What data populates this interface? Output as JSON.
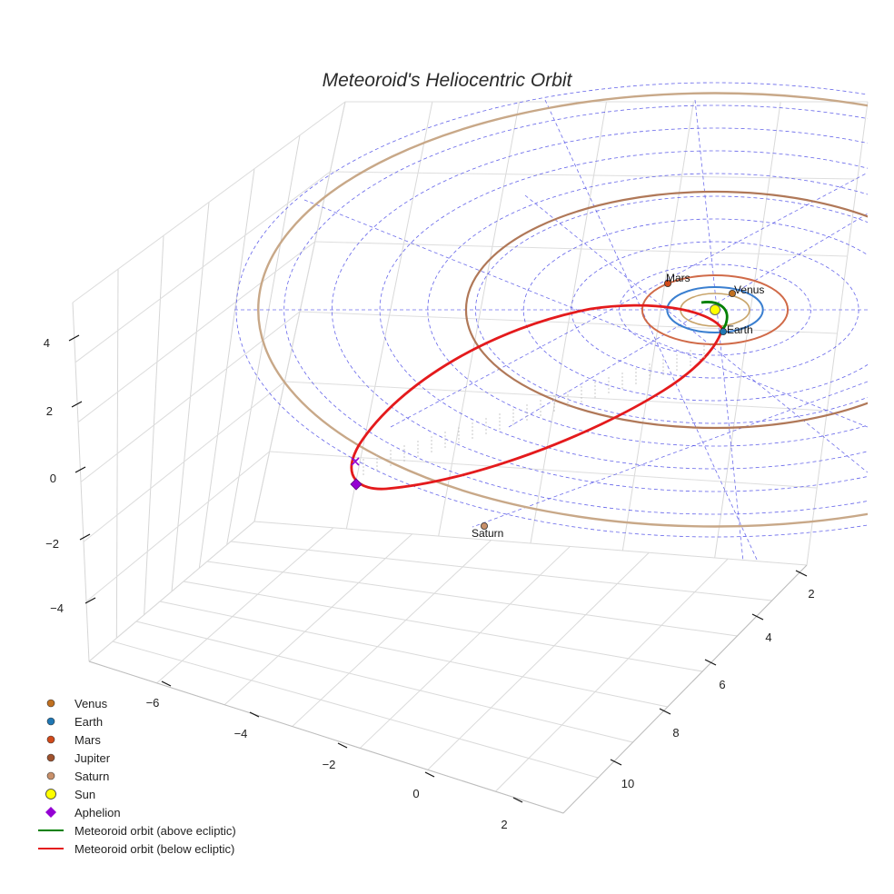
{
  "chart_data": {
    "type": "scatter3d",
    "title": "Meteoroid's Heliocentric Orbit",
    "x_ticks": [
      -6,
      -4,
      -2,
      0,
      2
    ],
    "y_ticks": [
      2,
      4,
      6,
      8,
      10
    ],
    "z_ticks": [
      4,
      2,
      0,
      -2,
      -4
    ],
    "x_tick_labels": [
      "−6",
      "−4",
      "−2",
      "0",
      "2"
    ],
    "y_tick_labels": [
      "2",
      "4",
      "6",
      "8",
      "10"
    ],
    "z_tick_labels": [
      "4",
      "2",
      "0",
      "−2",
      "−4"
    ],
    "grid": true,
    "ecliptic_rings_au": [
      1,
      2,
      3,
      4,
      5,
      6,
      7,
      8,
      9,
      10
    ],
    "planet_orbits_au": [
      {
        "name": "Venus",
        "radius": 0.72,
        "color": "#c8a46a"
      },
      {
        "name": "Earth",
        "radius": 1.0,
        "color": "#3a7fd0"
      },
      {
        "name": "Mars",
        "radius": 1.52,
        "color": "#d06a48"
      },
      {
        "name": "Jupiter",
        "radius": 5.2,
        "color": "#b07858"
      },
      {
        "name": "Saturn",
        "radius": 9.54,
        "color": "#c8a888"
      }
    ],
    "planets": [
      {
        "name": "Venus",
        "label": "Venus",
        "color": "#c07020"
      },
      {
        "name": "Earth",
        "label": "Earth",
        "color": "#1f77b4"
      },
      {
        "name": "Mars",
        "label": "Mars",
        "color": "#d24a1a"
      },
      {
        "name": "Saturn",
        "label": "Saturn",
        "color": "#c8906a"
      }
    ],
    "sun": {
      "x": 0,
      "y": 0,
      "z": 0,
      "color": "#ffff00"
    },
    "aphelion": {
      "distance_au": 8.5,
      "color": "#9400d3"
    },
    "orbit_segments": [
      {
        "name": "Meteoroid orbit (above ecliptic)",
        "color": "#008000"
      },
      {
        "name": "Meteoroid orbit (below ecliptic)",
        "color": "#e41a1c"
      }
    ],
    "legend_placement": "bottom-left",
    "legend": [
      {
        "label": "Venus",
        "symbol": "dot",
        "color": "#c07020"
      },
      {
        "label": "Earth",
        "symbol": "dot",
        "color": "#1f77b4"
      },
      {
        "label": "Mars",
        "symbol": "dot",
        "color": "#d24a1a"
      },
      {
        "label": "Jupiter",
        "symbol": "dot",
        "color": "#a0522d"
      },
      {
        "label": "Saturn",
        "symbol": "dot",
        "color": "#c8906a"
      },
      {
        "label": "Sun",
        "symbol": "sun",
        "color": "#ffff00"
      },
      {
        "label": "Aphelion",
        "symbol": "diamond",
        "color": "#9400d3"
      },
      {
        "label": "Meteoroid orbit (above ecliptic)",
        "symbol": "line",
        "color": "#008000"
      },
      {
        "label": "Meteoroid orbit (below ecliptic)",
        "symbol": "line",
        "color": "#e41a1c"
      }
    ]
  }
}
